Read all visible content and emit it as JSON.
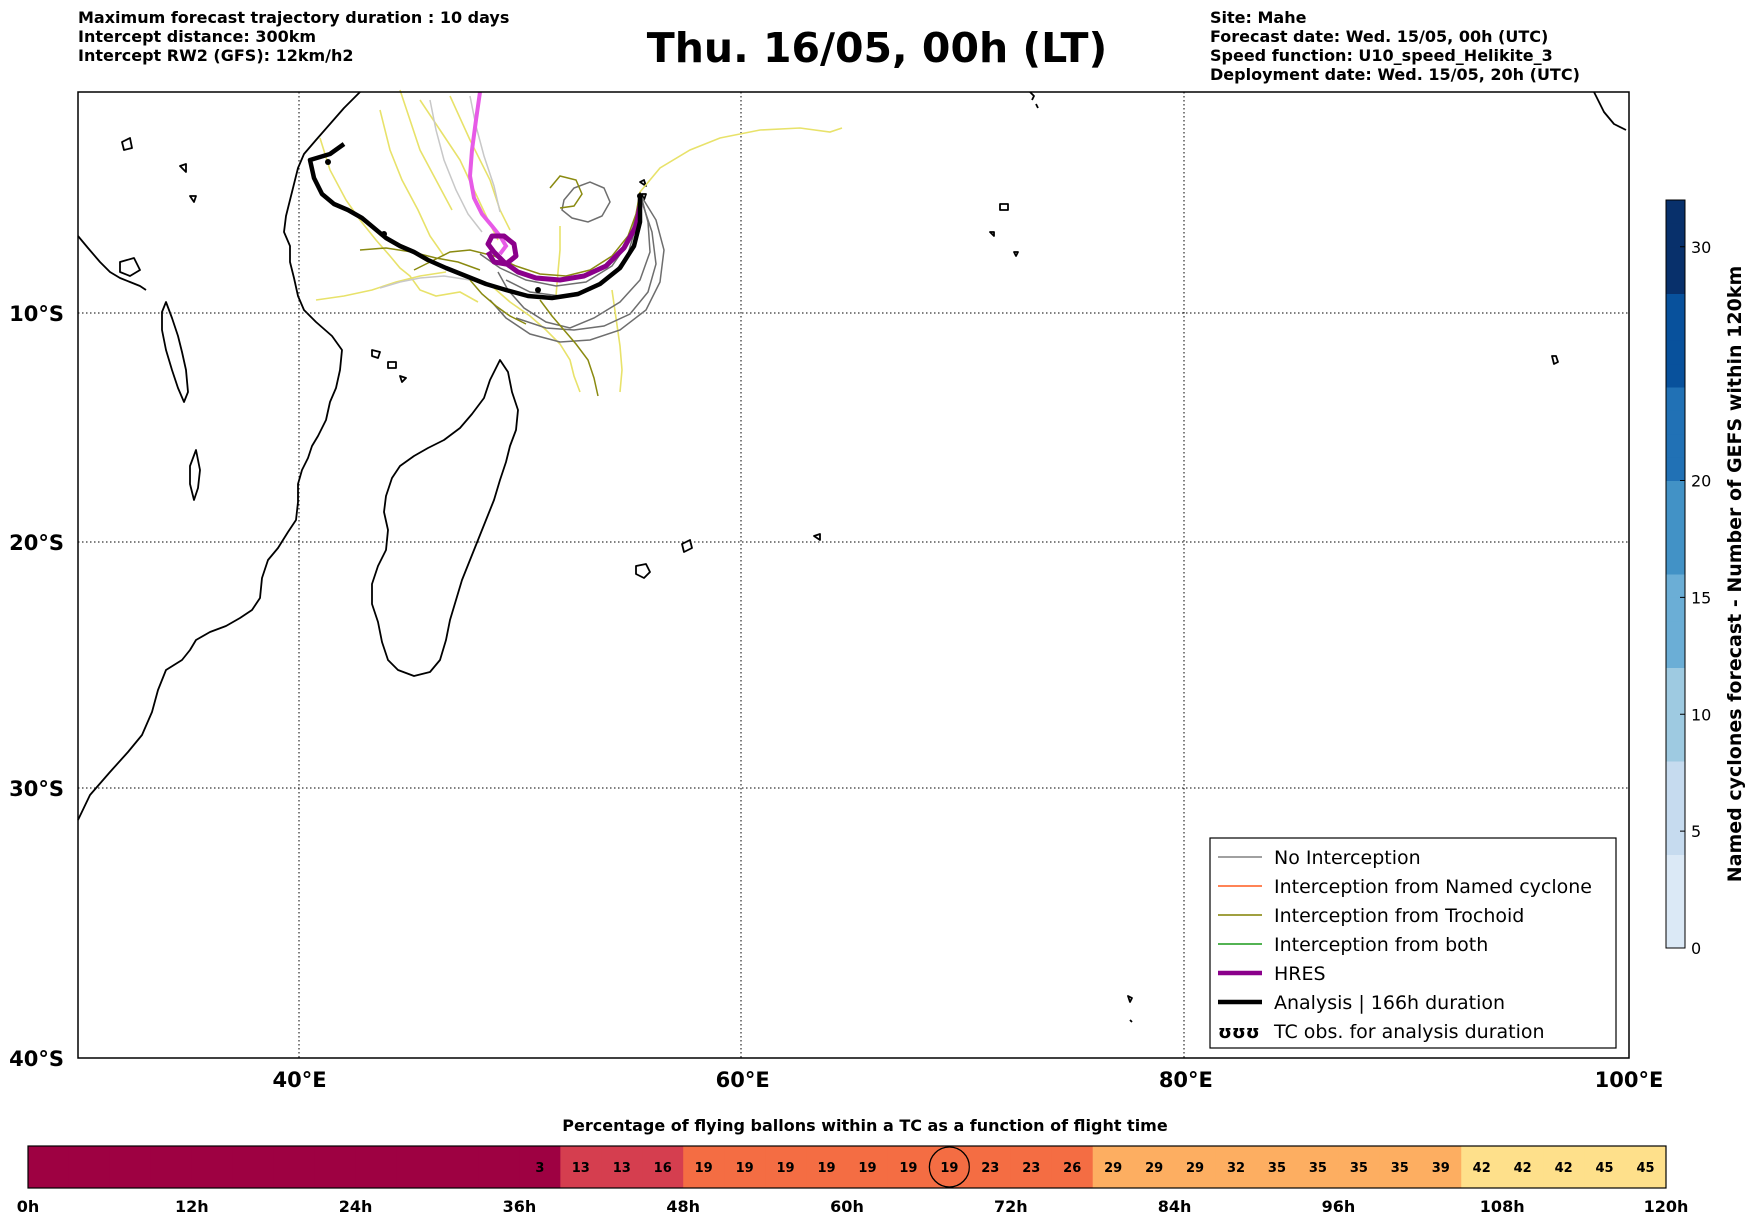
{
  "header": {
    "left": [
      "Maximum forecast trajectory duration : 10 days",
      "Intercept distance: 300km",
      "Intercept RW2 (GFS):  12km/h2"
    ],
    "title": "Thu. 16/05, 00h (LT)",
    "right": [
      "Site: Mahe",
      "Forecast date: Wed. 15/05, 00h (UTC)",
      "Speed function: U10_speed_Helikite_3",
      "Deployment date: Wed. 15/05, 20h (UTC)"
    ]
  },
  "map": {
    "lon_range": [
      30,
      100
    ],
    "lat_range": [
      -40,
      0
    ],
    "lon_ticks": [
      {
        "value": 40,
        "label": "40°E"
      },
      {
        "value": 60,
        "label": "60°E"
      },
      {
        "value": 80,
        "label": "80°E"
      },
      {
        "value": 100,
        "label": "100°E"
      }
    ],
    "lat_ticks": [
      {
        "value": -10,
        "label": "10°S"
      },
      {
        "value": -20,
        "label": "20°S"
      },
      {
        "value": -30,
        "label": "30°S"
      },
      {
        "value": -40,
        "label": "40°S"
      }
    ],
    "legend": [
      {
        "label": "No Interception",
        "color": "#808080",
        "style": "thin"
      },
      {
        "label": "Interception from Named cyclone",
        "color": "#ff5a1f",
        "style": "thin"
      },
      {
        "label": "Interception from Trochoid",
        "color": "#808000",
        "style": "thin"
      },
      {
        "label": "Interception from both",
        "color": "#1a9a1a",
        "style": "thin"
      },
      {
        "label": "HRES",
        "color": "#8b008b",
        "style": "thick"
      },
      {
        "label": "Analysis | 166h duration",
        "color": "#000000",
        "style": "thick"
      },
      {
        "label": "TC obs. for analysis duration",
        "color": "#000000",
        "style": "symbol"
      }
    ],
    "colors": {
      "coast": "#000000",
      "gefs_yellow": "#e8e26a",
      "gefs_grey": "#6e6e6e",
      "gefs_light_grey": "#c8c8c8",
      "trochoid": "#8a8a10",
      "hres": "#8b008b",
      "hres_recent": "#e75ae7",
      "analysis": "#000000"
    }
  },
  "colorbar": {
    "label": "Named cyclones forecast - Number of GEFS within 120km",
    "ticks": [
      0,
      5,
      10,
      15,
      20,
      30
    ],
    "range": [
      0,
      32
    ],
    "colors": [
      "#dbe9f6",
      "#c6dbef",
      "#9ecae1",
      "#6baed6",
      "#4292c6",
      "#2171b5",
      "#08519c",
      "#08306b"
    ]
  },
  "flight_bar": {
    "title": "Percentage of flying ballons within a TC as a function of flight time",
    "hours_range": [
      0,
      120
    ],
    "tick_labels": [
      "0h",
      "12h",
      "24h",
      "36h",
      "48h",
      "60h",
      "72h",
      "84h",
      "96h",
      "108h",
      "120h"
    ],
    "values": [
      0,
      0,
      0,
      0,
      0,
      0,
      0,
      0,
      0,
      0,
      0,
      0,
      3,
      13,
      13,
      16,
      19,
      19,
      19,
      19,
      19,
      19,
      19,
      23,
      23,
      26,
      29,
      29,
      29,
      32,
      35,
      35,
      35,
      35,
      39,
      42,
      42,
      42,
      45,
      45
    ],
    "highlight_index": 22,
    "color_scale": [
      "#9e0142",
      "#d53e4f",
      "#f46d43",
      "#fdae61",
      "#fee08b"
    ]
  }
}
